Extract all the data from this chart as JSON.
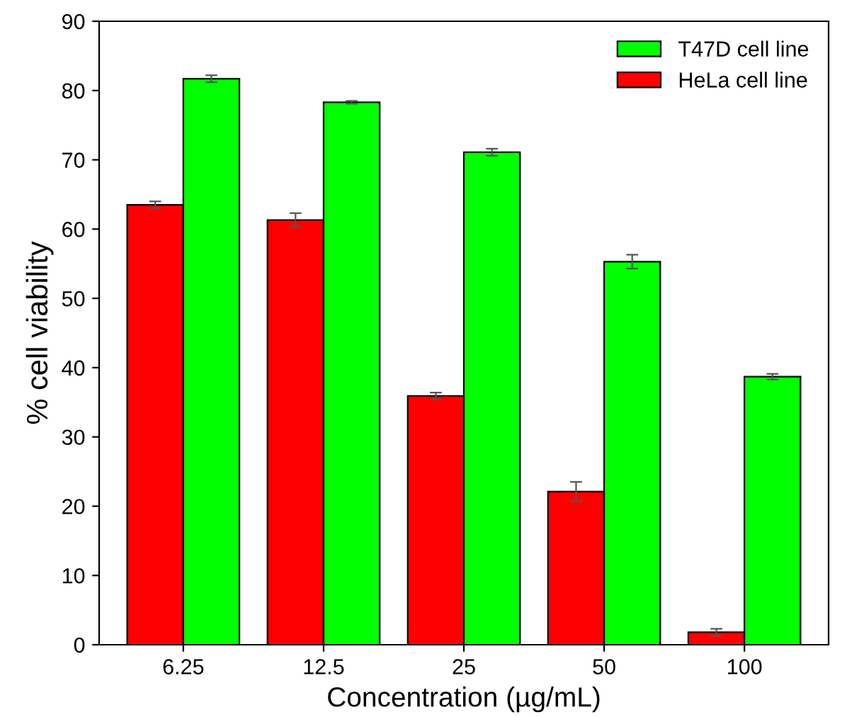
{
  "chart_data": {
    "type": "bar",
    "xlabel": "Concentration (µg/mL)",
    "ylabel": "% cell viability",
    "categories": [
      "6.25",
      "12.5",
      "25",
      "50",
      "100"
    ],
    "series": [
      {
        "name": "HeLa cell line",
        "color": "#ff0000",
        "values": [
          63.5,
          61.3,
          35.9,
          22.1,
          1.8
        ],
        "errors": [
          0.5,
          1.0,
          0.5,
          1.4,
          0.5
        ]
      },
      {
        "name": "T47D cell line",
        "color": "#00ff00",
        "values": [
          81.7,
          78.3,
          71.1,
          55.3,
          38.7
        ],
        "errors": [
          0.5,
          0.2,
          0.5,
          1.0,
          0.4
        ]
      }
    ],
    "ylim": [
      0,
      90
    ],
    "yticks": [
      0,
      10,
      20,
      30,
      40,
      50,
      60,
      70,
      80,
      90
    ],
    "grid": false,
    "legend": "top right"
  }
}
